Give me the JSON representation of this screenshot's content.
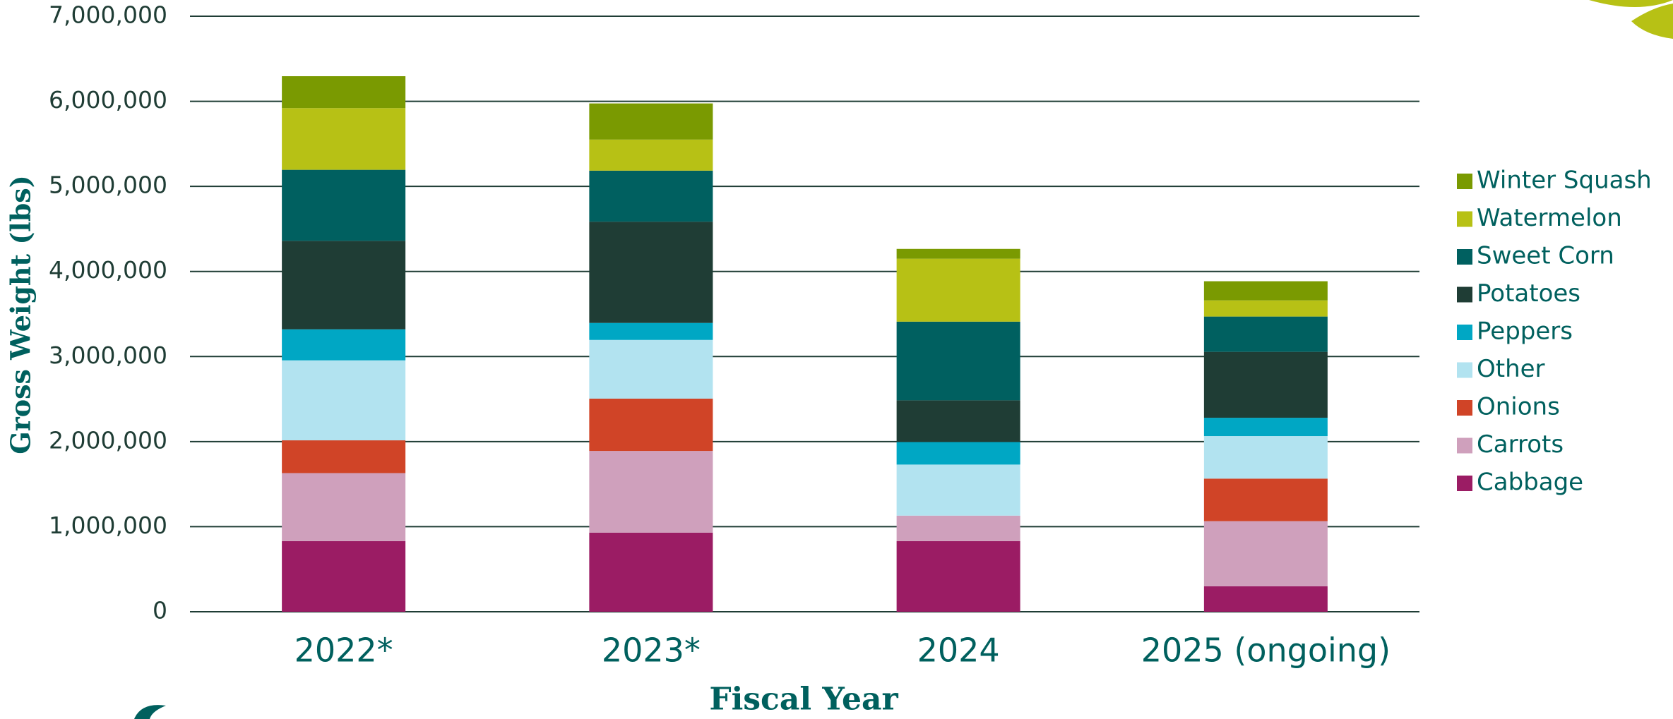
{
  "chart_data": {
    "type": "stacked_bar",
    "x_label": "Fiscal Year",
    "y_label": "Gross Weight (lbs)",
    "categories": [
      "2022*",
      "2023*",
      "2024",
      "2025 (ongoing)"
    ],
    "series": [
      {
        "name": "Cabbage",
        "color": "#9b1c64",
        "values": [
          830000,
          930000,
          830000,
          300000
        ]
      },
      {
        "name": "Carrots",
        "color": "#cfa0bc",
        "values": [
          800000,
          960000,
          300000,
          765000
        ]
      },
      {
        "name": "Onions",
        "color": "#d04427",
        "values": [
          385000,
          615000,
          0,
          500000
        ]
      },
      {
        "name": "Other",
        "color": "#b2e3f0",
        "values": [
          940000,
          690000,
          600000,
          500000
        ]
      },
      {
        "name": "Peppers",
        "color": "#00a7c4",
        "values": [
          365000,
          200000,
          265000,
          215000
        ]
      },
      {
        "name": "Potatoes",
        "color": "#1f3d35",
        "values": [
          1040000,
          1190000,
          490000,
          775000
        ]
      },
      {
        "name": "Sweet Corn",
        "color": "#006060",
        "values": [
          835000,
          600000,
          925000,
          415000
        ]
      },
      {
        "name": "Watermelon",
        "color": "#b7c115",
        "values": [
          725000,
          365000,
          740000,
          190000
        ]
      },
      {
        "name": "Winter Squash",
        "color": "#7a9a01",
        "values": [
          375000,
          425000,
          115000,
          225000
        ]
      }
    ],
    "ylim": [
      0,
      7000000
    ],
    "yticks": [
      0,
      {
        "value": 1000000,
        "label": "1,000,000"
      },
      {
        "value": 2000000,
        "label": "2,000,000"
      },
      {
        "value": 3000000,
        "label": "3,000,000"
      },
      {
        "value": 4000000,
        "label": "4,000,000"
      },
      {
        "value": 5000000,
        "label": "5,000,000"
      },
      {
        "value": 6000000,
        "label": "6,000,000"
      },
      {
        "value": 7000000,
        "label": "7,000,000"
      }
    ],
    "grid": true,
    "legend": "right"
  }
}
